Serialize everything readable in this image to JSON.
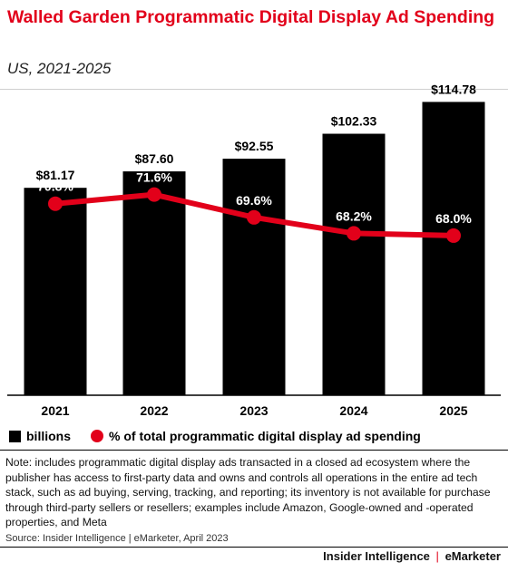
{
  "title": "Walled Garden Programmatic Digital Display Ad Spending",
  "subtitle": "US, 2021-2025",
  "chart_data": {
    "type": "bar",
    "categories": [
      "2021",
      "2022",
      "2023",
      "2024",
      "2025"
    ],
    "series": [
      {
        "name": "billions",
        "type": "bar",
        "values": [
          81.17,
          87.6,
          92.55,
          102.33,
          114.78
        ],
        "labels": [
          "$81.17",
          "$87.60",
          "$92.55",
          "$102.33",
          "$114.78"
        ],
        "color": "#000000"
      },
      {
        "name": "% of total programmatic digital display ad spending",
        "type": "line",
        "values": [
          70.8,
          71.6,
          69.6,
          68.2,
          68.0
        ],
        "labels": [
          "70.8%",
          "71.6%",
          "69.6%",
          "68.2%",
          "68.0%"
        ],
        "color": "#e2001a"
      }
    ],
    "bar_ylim": [
      0,
      116
    ],
    "line_ylim": [
      54,
      80
    ],
    "legend_position": "bottom-left",
    "grid": false
  },
  "legend": {
    "bars_label": "billions",
    "line_label": "% of total programmatic digital display ad spending"
  },
  "note": "Note: includes programmatic digital display ads transacted in a closed ad ecosystem where the publisher has access to first-party data and owns and controls all operations in the entire ad tech stack, such as ad buying, serving, tracking, and reporting; its inventory is not available for purchase through third-party sellers or resellers; examples include Amazon, Google-owned and -operated properties, and Meta",
  "source": "Source: Insider Intelligence | eMarketer, April 2023",
  "footer": {
    "brand_left": "Insider Intelligence",
    "separator": "|",
    "brand_right": "eMarketer"
  }
}
